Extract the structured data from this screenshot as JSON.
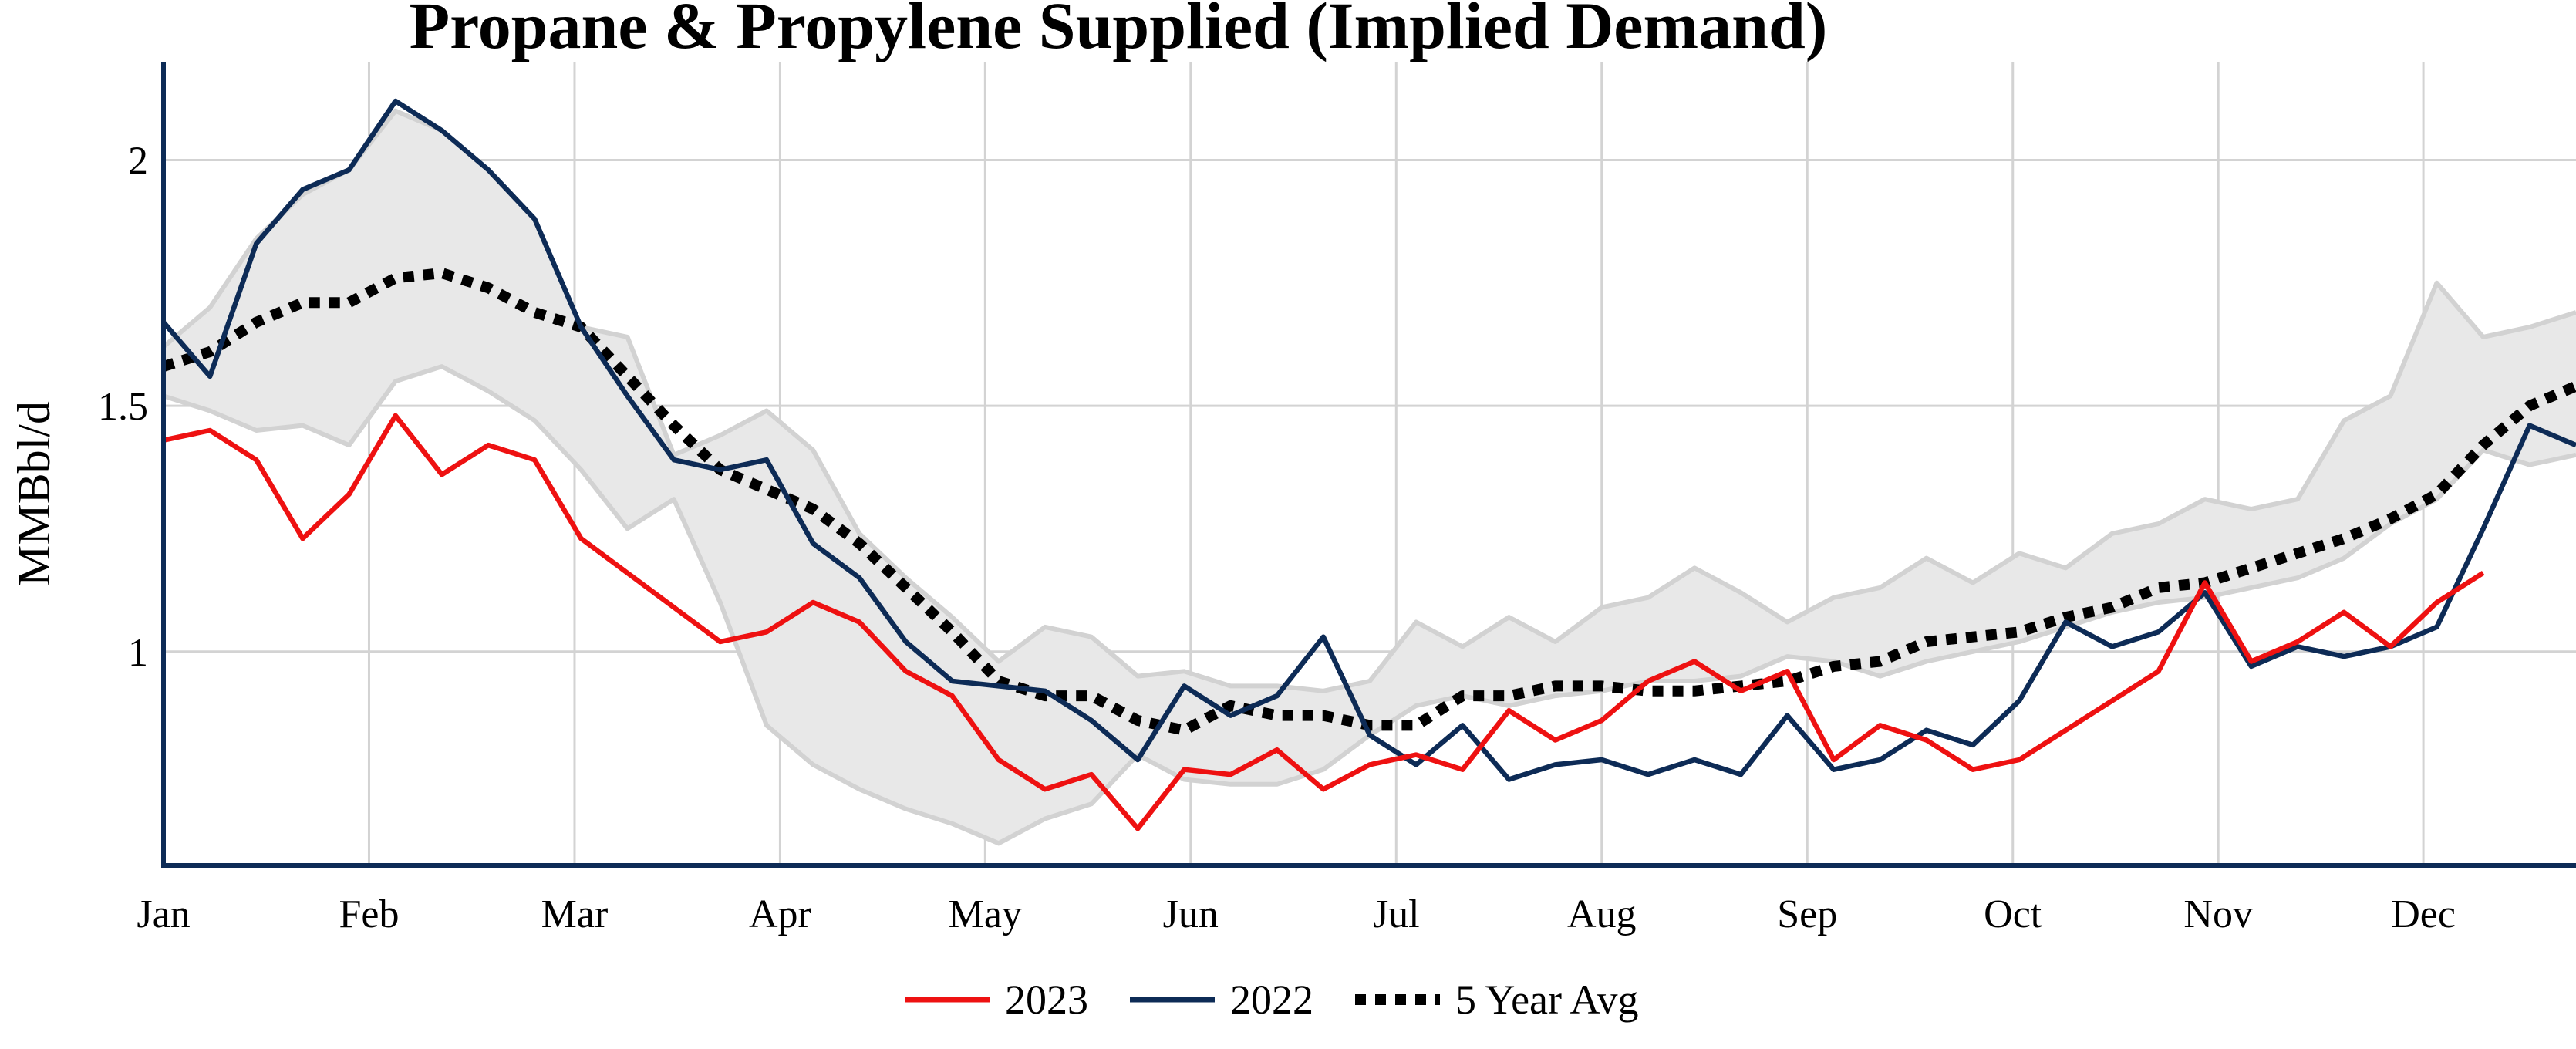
{
  "chart_data": {
    "type": "line",
    "title": "Propane & Propylene Supplied (Implied Demand)",
    "ylabel": "MMBbl/d",
    "xlabel": "",
    "ylim": [
      0.565,
      2.2
    ],
    "yticks": [
      1,
      1.5,
      2
    ],
    "x_range": [
      1,
      53
    ],
    "month_ticks": [
      {
        "label": "Jan",
        "week": 1
      },
      {
        "label": "Feb",
        "week": 5.43
      },
      {
        "label": "Mar",
        "week": 9.86
      },
      {
        "label": "Apr",
        "week": 14.29
      },
      {
        "label": "May",
        "week": 18.71
      },
      {
        "label": "Jun",
        "week": 23.14
      },
      {
        "label": "Jul",
        "week": 27.57
      },
      {
        "label": "Aug",
        "week": 32.0
      },
      {
        "label": "Sep",
        "week": 36.43
      },
      {
        "label": "Oct",
        "week": 40.86
      },
      {
        "label": "Nov",
        "week": 45.29
      },
      {
        "label": "Dec",
        "week": 49.71
      }
    ],
    "grid": true,
    "legend_position": "bottom-center",
    "band": {
      "x": [
        1,
        2,
        3,
        4,
        5,
        6,
        7,
        8,
        9,
        10,
        11,
        12,
        13,
        14,
        15,
        16,
        17,
        18,
        19,
        20,
        21,
        22,
        23,
        24,
        25,
        26,
        27,
        28,
        29,
        30,
        31,
        32,
        33,
        34,
        35,
        36,
        37,
        38,
        39,
        40,
        41,
        42,
        43,
        44,
        45,
        46,
        47,
        48,
        49,
        50,
        51,
        52,
        53
      ],
      "upper": [
        1.62,
        1.7,
        1.84,
        1.93,
        1.98,
        2.1,
        2.06,
        1.98,
        1.88,
        1.66,
        1.64,
        1.4,
        1.44,
        1.49,
        1.41,
        1.24,
        1.15,
        1.07,
        0.98,
        1.05,
        1.03,
        0.95,
        0.96,
        0.93,
        0.93,
        0.92,
        0.94,
        1.06,
        1.01,
        1.07,
        1.02,
        1.09,
        1.11,
        1.17,
        1.12,
        1.06,
        1.11,
        1.13,
        1.19,
        1.14,
        1.2,
        1.17,
        1.24,
        1.26,
        1.31,
        1.29,
        1.31,
        1.47,
        1.52,
        1.75,
        1.64,
        1.66,
        1.69
      ],
      "lower": [
        1.52,
        1.49,
        1.45,
        1.46,
        1.42,
        1.55,
        1.58,
        1.53,
        1.47,
        1.37,
        1.25,
        1.31,
        1.1,
        0.85,
        0.77,
        0.72,
        0.68,
        0.65,
        0.61,
        0.66,
        0.69,
        0.79,
        0.74,
        0.73,
        0.73,
        0.76,
        0.83,
        0.89,
        0.91,
        0.89,
        0.91,
        0.92,
        0.94,
        0.94,
        0.95,
        0.99,
        0.98,
        0.95,
        0.98,
        1.0,
        1.02,
        1.05,
        1.08,
        1.1,
        1.11,
        1.13,
        1.15,
        1.19,
        1.26,
        1.31,
        1.41,
        1.38,
        1.4
      ]
    },
    "series": [
      {
        "name": "2023",
        "color": "#ee1111",
        "style": "solid",
        "x": [
          1,
          2,
          3,
          4,
          5,
          6,
          7,
          8,
          9,
          10,
          11,
          12,
          13,
          14,
          15,
          16,
          17,
          18,
          19,
          20,
          21,
          22,
          23,
          24,
          25,
          26,
          27,
          28,
          29,
          30,
          31,
          32,
          33,
          34,
          35,
          36,
          37,
          38,
          39,
          40,
          41,
          42,
          43,
          44,
          45,
          46,
          47,
          48,
          49,
          50,
          51
        ],
        "values": [
          1.43,
          1.45,
          1.39,
          1.23,
          1.32,
          1.48,
          1.36,
          1.42,
          1.39,
          1.23,
          1.16,
          1.09,
          1.02,
          1.04,
          1.1,
          1.06,
          0.96,
          0.91,
          0.78,
          0.72,
          0.75,
          0.64,
          0.76,
          0.75,
          0.8,
          0.72,
          0.77,
          0.79,
          0.76,
          0.88,
          0.82,
          0.86,
          0.94,
          0.98,
          0.92,
          0.96,
          0.78,
          0.85,
          0.82,
          0.76,
          0.78,
          0.84,
          0.9,
          0.96,
          1.14,
          0.98,
          1.02,
          1.08,
          1.01,
          1.1,
          1.16
        ]
      },
      {
        "name": "2022",
        "color": "#0d2b56",
        "style": "solid",
        "x": [
          1,
          2,
          3,
          4,
          5,
          6,
          7,
          8,
          9,
          10,
          11,
          12,
          13,
          14,
          15,
          16,
          17,
          18,
          19,
          20,
          21,
          22,
          23,
          24,
          25,
          26,
          27,
          28,
          29,
          30,
          31,
          32,
          33,
          34,
          35,
          36,
          37,
          38,
          39,
          40,
          41,
          42,
          43,
          44,
          45,
          46,
          47,
          48,
          49,
          50,
          51,
          52,
          53
        ],
        "values": [
          1.67,
          1.56,
          1.83,
          1.94,
          1.98,
          2.12,
          2.06,
          1.98,
          1.88,
          1.66,
          1.52,
          1.39,
          1.37,
          1.39,
          1.22,
          1.15,
          1.02,
          0.94,
          0.93,
          0.92,
          0.86,
          0.78,
          0.93,
          0.87,
          0.91,
          1.03,
          0.83,
          0.77,
          0.85,
          0.74,
          0.77,
          0.78,
          0.75,
          0.78,
          0.75,
          0.87,
          0.76,
          0.78,
          0.84,
          0.81,
          0.9,
          1.06,
          1.01,
          1.04,
          1.12,
          0.97,
          1.01,
          0.99,
          1.01,
          1.05,
          1.25,
          1.46,
          1.42
        ]
      },
      {
        "name": "5 Year Avg",
        "color": "#000000",
        "style": "dotted",
        "x": [
          1,
          2,
          3,
          4,
          5,
          6,
          7,
          8,
          9,
          10,
          11,
          12,
          13,
          14,
          15,
          16,
          17,
          18,
          19,
          20,
          21,
          22,
          23,
          24,
          25,
          26,
          27,
          28,
          29,
          30,
          31,
          32,
          33,
          34,
          35,
          36,
          37,
          38,
          39,
          40,
          41,
          42,
          43,
          44,
          45,
          46,
          47,
          48,
          49,
          50,
          51,
          52,
          53
        ],
        "values": [
          1.58,
          1.61,
          1.67,
          1.71,
          1.71,
          1.76,
          1.77,
          1.74,
          1.69,
          1.66,
          1.56,
          1.46,
          1.37,
          1.33,
          1.29,
          1.22,
          1.13,
          1.04,
          0.94,
          0.91,
          0.91,
          0.86,
          0.84,
          0.89,
          0.87,
          0.87,
          0.85,
          0.85,
          0.91,
          0.91,
          0.93,
          0.93,
          0.92,
          0.92,
          0.93,
          0.94,
          0.97,
          0.98,
          1.02,
          1.03,
          1.04,
          1.07,
          1.09,
          1.13,
          1.14,
          1.17,
          1.2,
          1.23,
          1.27,
          1.32,
          1.42,
          1.5,
          1.54
        ]
      }
    ]
  }
}
